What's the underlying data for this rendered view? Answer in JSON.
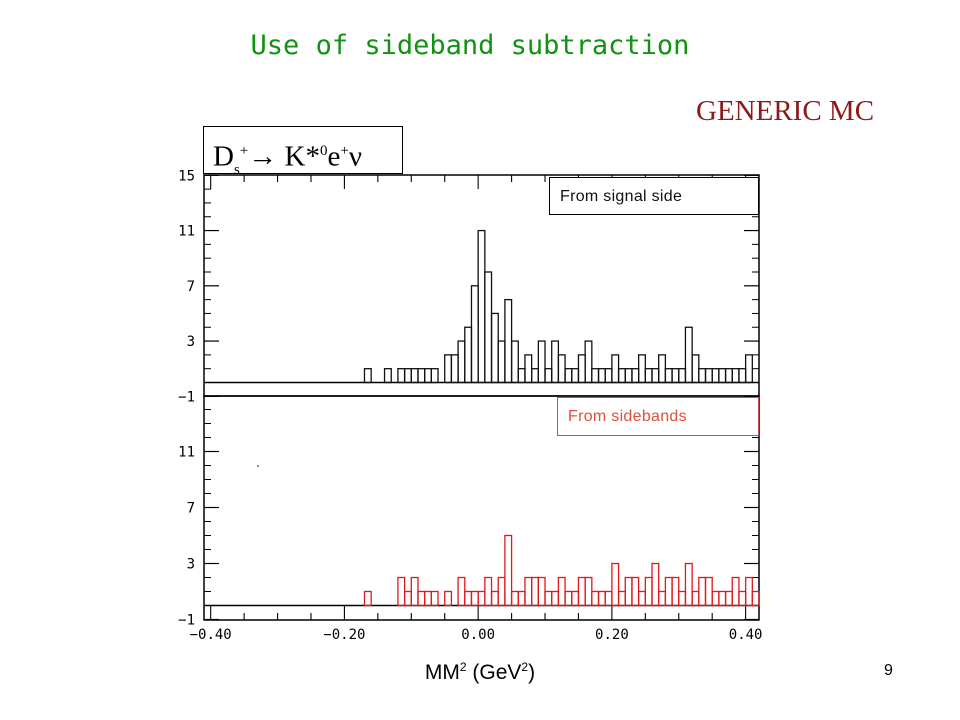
{
  "slide": {
    "title": "Use of sideband subtraction",
    "badge": "GENERIC MC",
    "decay": {
      "base": "D",
      "sub": "s",
      "sup": "+",
      "arrow": "→ K*",
      "k_sup": "0",
      "e": "e",
      "e_sup": "+",
      "nu": "ν"
    },
    "page_number": "9"
  },
  "axis_label": {
    "main": "MM",
    "sup1": "2",
    "mid": " (GeV",
    "sup2": "2",
    "end": ")"
  },
  "colors": {
    "title": "#129212",
    "badge": "#8c1a1a",
    "signal": "#111111",
    "sidebands": "#e0181c",
    "legend_sidebands": "#e0503c"
  },
  "chart_data": [
    {
      "type": "bar",
      "series": [
        {
          "name": "From signal side"
        }
      ],
      "xlim": [
        -0.41,
        0.42
      ],
      "ylim": [
        -1,
        15
      ],
      "yticks": [
        15,
        11,
        7,
        3,
        -1
      ],
      "ytick_labels": [
        "15",
        "11",
        "7",
        "3",
        "−1"
      ],
      "bin_width": 0.01,
      "bins_x": [
        -0.17,
        -0.14,
        -0.12,
        -0.11,
        -0.1,
        -0.09,
        -0.08,
        -0.07,
        -0.05,
        -0.04,
        -0.03,
        -0.02,
        -0.01,
        0.0,
        0.01,
        0.02,
        0.03,
        0.04,
        0.05,
        0.06,
        0.07,
        0.08,
        0.09,
        0.1,
        0.11,
        0.12,
        0.13,
        0.14,
        0.15,
        0.16,
        0.17,
        0.18,
        0.19,
        0.2,
        0.21,
        0.22,
        0.23,
        0.24,
        0.25,
        0.26,
        0.27,
        0.28,
        0.29,
        0.3,
        0.31,
        0.32,
        0.33,
        0.34,
        0.35,
        0.36,
        0.37,
        0.38,
        0.39,
        0.4
      ],
      "values": [
        1,
        1,
        1,
        1,
        1,
        1,
        1,
        1,
        2,
        2,
        3,
        4,
        7,
        11,
        8,
        5,
        3,
        6,
        3,
        1,
        2,
        1,
        3,
        1,
        3,
        2,
        1,
        1,
        2,
        3,
        1,
        1,
        1,
        2,
        1,
        1,
        1,
        2,
        1,
        1,
        2,
        1,
        1,
        1,
        4,
        2,
        1,
        1,
        1,
        1,
        1,
        1,
        1,
        2
      ]
    },
    {
      "type": "bar",
      "series": [
        {
          "name": "From sidebands"
        }
      ],
      "xlim": [
        -0.41,
        0.42
      ],
      "ylim": [
        -1,
        15
      ],
      "yticks": [
        11,
        7,
        3,
        -1
      ],
      "ytick_labels": [
        "11",
        "7",
        "3",
        "−1"
      ],
      "xticks": [
        -0.4,
        -0.2,
        0.0,
        0.2,
        0.4
      ],
      "xtick_labels": [
        "−0.40",
        "−0.20",
        "0.00",
        "0.20",
        "0.40"
      ],
      "bin_width": 0.01,
      "bins_x": [
        -0.17,
        -0.12,
        -0.11,
        -0.1,
        -0.09,
        -0.08,
        -0.07,
        -0.05,
        -0.03,
        -0.02,
        -0.01,
        0.0,
        0.01,
        0.02,
        0.03,
        0.04,
        0.05,
        0.06,
        0.07,
        0.08,
        0.09,
        0.1,
        0.11,
        0.12,
        0.13,
        0.14,
        0.15,
        0.16,
        0.17,
        0.18,
        0.19,
        0.2,
        0.21,
        0.22,
        0.23,
        0.24,
        0.25,
        0.26,
        0.27,
        0.28,
        0.29,
        0.3,
        0.31,
        0.32,
        0.33,
        0.34,
        0.35,
        0.36,
        0.37,
        0.38,
        0.39,
        0.4,
        0.41
      ],
      "values": [
        1,
        2,
        1,
        2,
        1,
        1,
        1,
        1,
        2,
        1,
        1,
        1,
        2,
        1,
        2,
        5,
        1,
        1,
        2,
        2,
        2,
        1,
        1,
        2,
        1,
        1,
        2,
        2,
        1,
        1,
        1,
        3,
        1,
        2,
        2,
        1,
        2,
        3,
        1,
        2,
        2,
        1,
        3,
        1,
        2,
        2,
        1,
        1,
        1,
        2,
        1,
        2,
        1
      ]
    }
  ]
}
